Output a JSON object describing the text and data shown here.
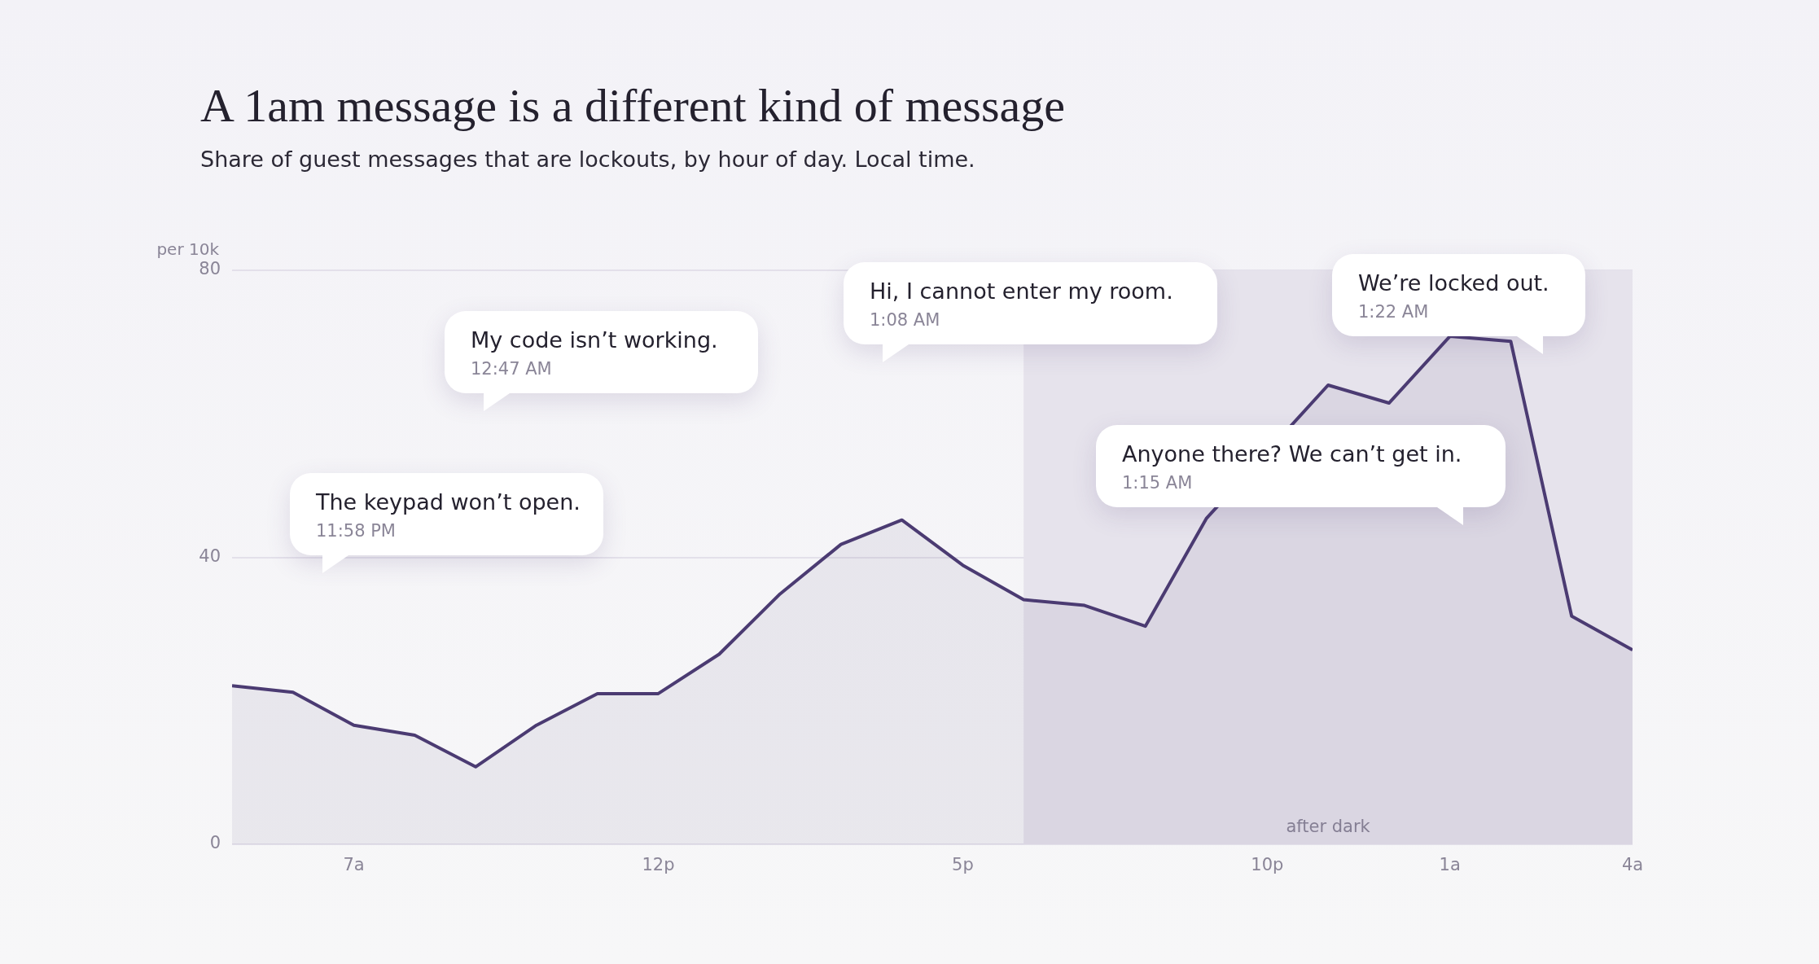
{
  "chart_data": {
    "type": "area",
    "title": "A 1am message is a different kind of message",
    "subtitle": "Share of guest messages that are lockouts, by hour of day. Local time.",
    "ylabel": "per 10k",
    "x": [
      "--01-01T05:00",
      "--01-01T06:00",
      "--01-01T07:00",
      "--01-01T08:00",
      "--01-01T09:00",
      "--01-01T10:00",
      "--01-01T11:00",
      "--01-01T12:00",
      "--01-01T13:00",
      "--01-01T14:00",
      "--01-01T15:00",
      "--01-01T16:00",
      "--01-01T17:00",
      "--01-01T18:00",
      "--01-01T19:00",
      "--01-01T20:00",
      "--01-01T21:00",
      "--01-01T22:00",
      "--01-01T23:00",
      "--01-02T00:00",
      "--01-02T01:00",
      "--01-02T02:00",
      "--01-02T03:00",
      "--01-02T04:00"
    ],
    "series": [
      {
        "color": "#4b3b72",
        "values": [
          22.1,
          21.2,
          16.6,
          15.2,
          10.8,
          16.6,
          21,
          21,
          26.5,
          34.9,
          41.8,
          45.2,
          38.9,
          34.1,
          33.3,
          30.4,
          45.4,
          null,
          64,
          61.5,
          70.8,
          70.1,
          31.8,
          27.1
        ]
      }
    ],
    "xlim": [
      "--01-01T05:00",
      "--01-02T04:00"
    ],
    "xticks": [
      {
        "value": "--01-01T07:00",
        "label": "7a"
      },
      {
        "value": "--01-01T12:00",
        "label": "12p"
      },
      {
        "value": "--01-01T17:00",
        "label": "5p"
      },
      {
        "value": "--01-01T22:00",
        "label": "10p"
      },
      {
        "value": "--01-02T01:00",
        "label": "1a"
      },
      {
        "value": "--01-02T04:00",
        "label": "4a"
      }
    ],
    "ylim": [
      0,
      80
    ],
    "yticks": [
      0,
      40,
      80
    ],
    "grid": "y",
    "legend": false,
    "bands": [
      {
        "axis": "x",
        "from": "--01-01T18:00",
        "to": "--01-02T04:00",
        "label": "after dark",
        "color": "#e6e3ec"
      }
    ],
    "annotations": [
      "The keypad won’t open.",
      "11:58 PM",
      "My code isn’t working.",
      "12:47 AM",
      "Hi, I cannot enter my room.",
      "1:08 AM",
      "Anyone there? We can’t get in.",
      "1:15 AM",
      "We’re locked out.",
      "1:22 AM"
    ]
  }
}
